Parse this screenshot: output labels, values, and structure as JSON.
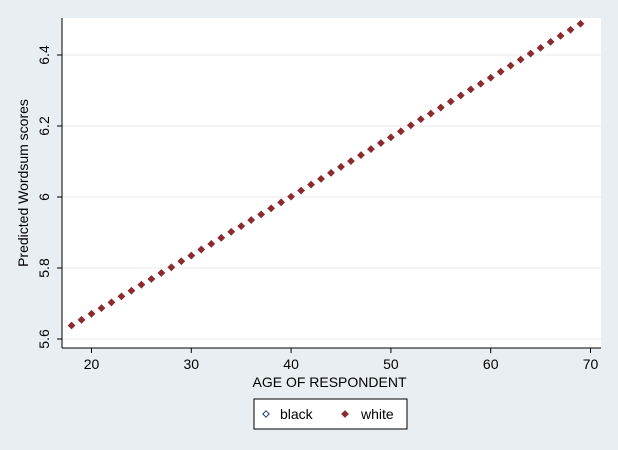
{
  "chart_data": {
    "type": "scatter",
    "xlabel": "AGE OF RESPONDENT",
    "ylabel": "Predicted Wordsum scores",
    "xlim": [
      18,
      70
    ],
    "ylim": [
      5.6,
      6.5
    ],
    "x_ticks": [
      20,
      30,
      40,
      50,
      60,
      70
    ],
    "y_ticks": [
      5.6,
      5.8,
      6,
      6.2,
      6.4
    ],
    "x_tick_labels": [
      "20",
      "30",
      "40",
      "50",
      "60",
      "70"
    ],
    "y_tick_labels": [
      "5.6",
      "5.8",
      "6",
      "6.2",
      "6.4"
    ],
    "grid": true,
    "legend_position": "bottom",
    "series": [
      {
        "name": "black",
        "marker": "hollow-diamond",
        "color": "#1a3b73",
        "x": [],
        "y": []
      },
      {
        "name": "white",
        "marker": "filled-diamond",
        "color": "#8b2b30",
        "x": [
          18,
          19,
          20,
          21,
          22,
          23,
          24,
          25,
          26,
          27,
          28,
          29,
          30,
          31,
          32,
          33,
          34,
          35,
          36,
          37,
          38,
          39,
          40,
          41,
          42,
          43,
          44,
          45,
          46,
          47,
          48,
          49,
          50,
          51,
          52,
          53,
          54,
          55,
          56,
          57,
          58,
          59,
          60,
          61,
          62,
          63,
          64,
          65,
          66,
          67,
          68,
          69
        ],
        "y": [
          5.638,
          5.654,
          5.671,
          5.687,
          5.703,
          5.72,
          5.736,
          5.753,
          5.769,
          5.786,
          5.802,
          5.819,
          5.835,
          5.852,
          5.868,
          5.885,
          5.902,
          5.918,
          5.935,
          5.951,
          5.968,
          5.985,
          6.001,
          6.018,
          6.035,
          6.051,
          6.068,
          6.085,
          6.101,
          6.118,
          6.135,
          6.152,
          6.168,
          6.185,
          6.202,
          6.219,
          6.235,
          6.252,
          6.269,
          6.286,
          6.303,
          6.319,
          6.336,
          6.353,
          6.37,
          6.387,
          6.404,
          6.42,
          6.437,
          6.454,
          6.471,
          6.488
        ]
      }
    ]
  }
}
